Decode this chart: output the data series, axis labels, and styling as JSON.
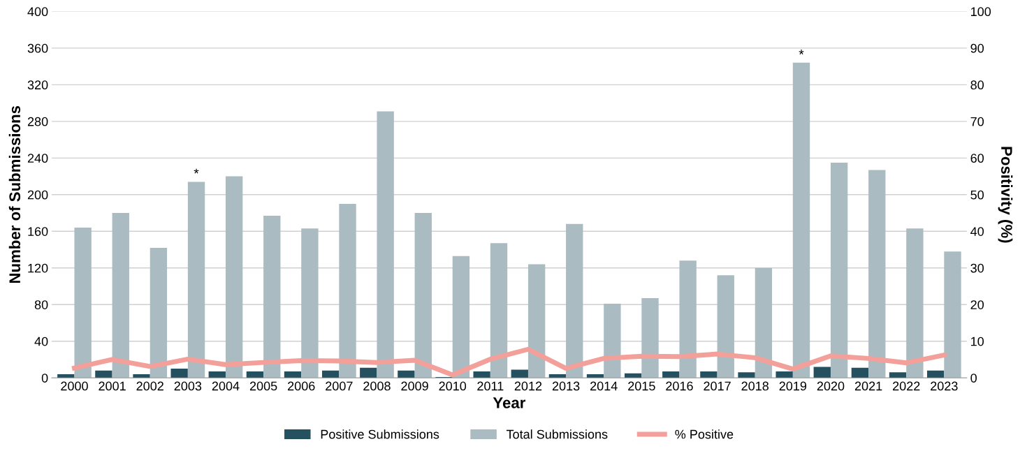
{
  "chart_data": {
    "type": "bar",
    "xlabel": "Year",
    "ylabel": "Number of Submissions",
    "y2label": "Positivity (%)",
    "categories": [
      "2000",
      "2001",
      "2002",
      "2003",
      "2004",
      "2005",
      "2006",
      "2007",
      "2008",
      "2009",
      "2010",
      "2011",
      "2012",
      "2013",
      "2014",
      "2015",
      "2016",
      "2017",
      "2018",
      "2019",
      "2020",
      "2021",
      "2022",
      "2023"
    ],
    "series": [
      {
        "name": "Positive Submissions",
        "color": "#24505f",
        "values": [
          4,
          8,
          4,
          10,
          7,
          7,
          7,
          8,
          11,
          8,
          1,
          7,
          9,
          4,
          4,
          5,
          7,
          7,
          6,
          7,
          12,
          11,
          6,
          8
        ]
      },
      {
        "name": "Total Submissions",
        "color": "#aabbc2",
        "values": [
          164,
          180,
          142,
          214,
          220,
          177,
          163,
          190,
          291,
          180,
          133,
          147,
          124,
          168,
          81,
          87,
          128,
          112,
          120,
          344,
          235,
          227,
          163,
          138
        ]
      },
      {
        "name": "% Positive",
        "type": "line",
        "axis": "y2",
        "color": "#f4a09a",
        "values": [
          2.7,
          5.0,
          3.1,
          5.1,
          3.6,
          4.2,
          4.7,
          4.6,
          4.2,
          4.8,
          0.8,
          5.1,
          7.8,
          2.6,
          5.3,
          5.9,
          5.8,
          6.5,
          5.5,
          2.4,
          6.0,
          5.3,
          4.1,
          6.2
        ]
      }
    ],
    "annotations": [
      {
        "text": "*",
        "x": "2003",
        "y": 214
      },
      {
        "text": "*",
        "x": "2019",
        "y": 344
      }
    ],
    "ylim": [
      0,
      400
    ],
    "yticks": [
      0,
      40,
      80,
      120,
      160,
      200,
      240,
      280,
      320,
      360,
      400
    ],
    "y2lim": [
      0,
      100
    ],
    "y2ticks": [
      0,
      10,
      20,
      30,
      40,
      50,
      60,
      70,
      80,
      90,
      100
    ],
    "grid": "y",
    "legend": "bottom",
    "marker": "none",
    "line_style": "solid"
  }
}
